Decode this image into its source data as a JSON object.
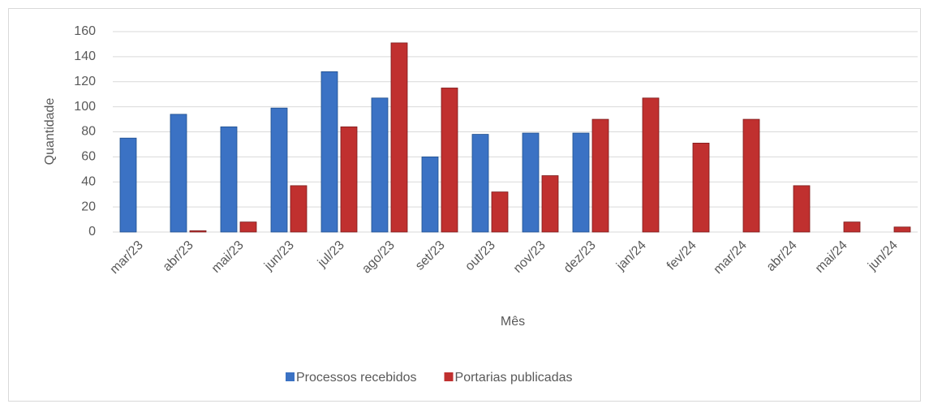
{
  "chart_data": {
    "type": "bar",
    "xlabel": "Mês",
    "ylabel": "Quantidade",
    "categories": [
      "mar/23",
      "abr/23",
      "mai/23",
      "jun/23",
      "jul/23",
      "ago/23",
      "set/23",
      "out/23",
      "nov/23",
      "dez/23",
      "jan/24",
      "fev/24",
      "mar/24",
      "abr/24",
      "mai/24",
      "jun/24"
    ],
    "series": [
      {
        "name": "Processos recebidos",
        "color": "#3b72c4",
        "values": [
          75,
          94,
          84,
          99,
          128,
          107,
          60,
          78,
          79,
          79,
          0,
          0,
          0,
          0,
          0,
          0
        ]
      },
      {
        "name": "Portarias publicadas",
        "color": "#c0302f",
        "values": [
          0,
          1,
          8,
          37,
          84,
          151,
          115,
          32,
          45,
          90,
          107,
          71,
          90,
          37,
          8,
          4
        ]
      }
    ],
    "ylim": [
      0,
      160
    ],
    "yticks": [
      0,
      20,
      40,
      60,
      80,
      100,
      120,
      140,
      160
    ],
    "grid": true,
    "legend": "bottom"
  }
}
